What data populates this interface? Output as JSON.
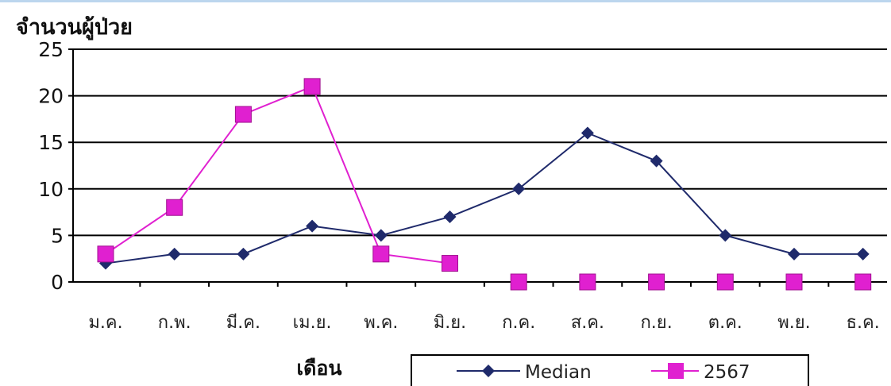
{
  "chart_data": {
    "type": "line",
    "ylabel": "จำนวนผู้ป่วย",
    "xlabel": "เดือน",
    "categories": [
      "ม.ค.",
      "ก.พ.",
      "มี.ค.",
      "เม.ย.",
      "พ.ค.",
      "มิ.ย.",
      "ก.ค.",
      "ส.ค.",
      "ก.ย.",
      "ต.ค.",
      "พ.ย.",
      "ธ.ค."
    ],
    "ylim": [
      0,
      25
    ],
    "yticks": [
      0,
      5,
      10,
      15,
      20,
      25
    ],
    "grid": true,
    "legend_position": "bottom-right",
    "series": [
      {
        "name": "Median",
        "color": "#1f2a6b",
        "marker": "diamond",
        "values": [
          2,
          3,
          3,
          6,
          5,
          7,
          10,
          16,
          13,
          5,
          3,
          3
        ]
      },
      {
        "name": "2567",
        "color": "#e020d0",
        "marker": "square",
        "values": [
          3,
          8,
          18,
          21,
          3,
          2,
          0,
          0,
          0,
          0,
          0,
          0
        ],
        "connected_to_index": 5
      }
    ]
  }
}
